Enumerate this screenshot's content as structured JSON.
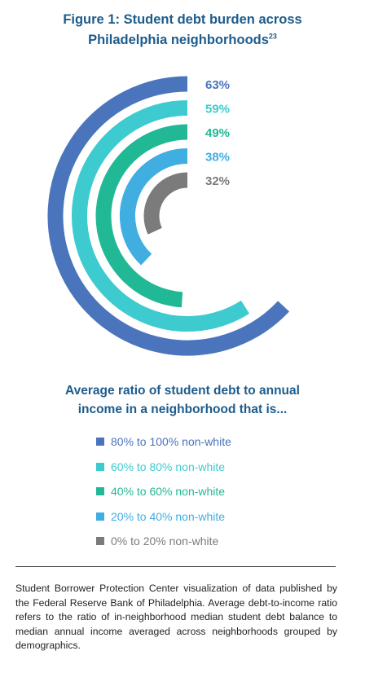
{
  "title": {
    "line1": "Figure 1: Student debt burden across",
    "line2": "Philadelphia neighborhoods",
    "footnote_ref": "23"
  },
  "legend_title": {
    "line1": "Average ratio of student debt to annual",
    "line2": "income in a neighborhood that is..."
  },
  "chart_data": {
    "type": "radial-bar",
    "max_value": 100,
    "series": [
      {
        "name": "80% to 100% non-white",
        "value": 63,
        "label": "63%",
        "color": "#4a74bc"
      },
      {
        "name": "60% to 80% non-white",
        "value": 59,
        "label": "59%",
        "color": "#3ecbcf"
      },
      {
        "name": "40% to 60% non-white",
        "value": 49,
        "label": "49%",
        "color": "#21b896"
      },
      {
        "name": "20% to 40% non-white",
        "value": 38,
        "label": "38%",
        "color": "#40aee0"
      },
      {
        "name": "0% to 20% non-white",
        "value": 32,
        "label": "32%",
        "color": "#7b7b7b"
      }
    ]
  },
  "note": "Student Borrower Protection Center visualization of data published by the Federal Reserve Bank of Philadelphia. Average debt-to-income ratio refers to the ratio of in-neighborhood median student debt balance to median annual income averaged across neighborhoods grouped by demographics."
}
